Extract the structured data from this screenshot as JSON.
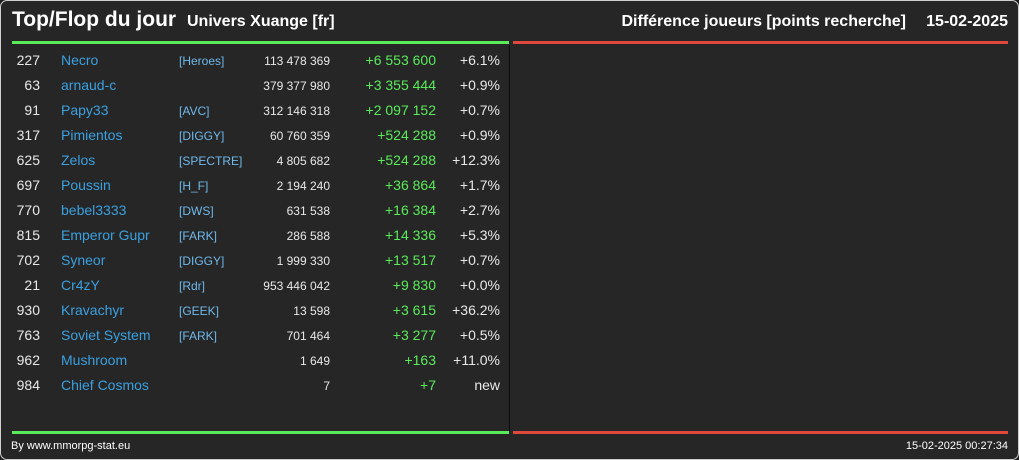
{
  "header": {
    "title": "Top/Flop du jour",
    "universe": "Univers Xuange [fr]",
    "metric": "Différence joueurs [points recherche]",
    "date": "15-02-2025"
  },
  "colors": {
    "top_line": "#5aeb5a",
    "flop_line": "#e0483e",
    "player_name": "#3aa0e0",
    "alliance_tag": "#6fb8ea",
    "positive_diff": "#5aeb5a"
  },
  "top_rows": [
    {
      "rank": "227",
      "name": "Necro",
      "alliance": "[Heroes]",
      "points": "113 478 369",
      "diff": "+6 553 600",
      "pct": "+6.1%"
    },
    {
      "rank": "63",
      "name": "arnaud-c",
      "alliance": "",
      "points": "379 377 980",
      "diff": "+3 355 444",
      "pct": "+0.9%"
    },
    {
      "rank": "91",
      "name": "Papy33",
      "alliance": "[AVC]",
      "points": "312 146 318",
      "diff": "+2 097 152",
      "pct": "+0.7%"
    },
    {
      "rank": "317",
      "name": "Pimientos",
      "alliance": "[DIGGY]",
      "points": "60 760 359",
      "diff": "+524 288",
      "pct": "+0.9%"
    },
    {
      "rank": "625",
      "name": "Zelos",
      "alliance": "[SPECTRE]",
      "points": "4 805 682",
      "diff": "+524 288",
      "pct": "+12.3%"
    },
    {
      "rank": "697",
      "name": "Poussin",
      "alliance": "[H_F]",
      "points": "2 194 240",
      "diff": "+36 864",
      "pct": "+1.7%"
    },
    {
      "rank": "770",
      "name": "bebel3333",
      "alliance": "[DWS]",
      "points": "631 538",
      "diff": "+16 384",
      "pct": "+2.7%"
    },
    {
      "rank": "815",
      "name": "Emperor Gupr",
      "alliance": "[FARK]",
      "points": "286 588",
      "diff": "+14 336",
      "pct": "+5.3%"
    },
    {
      "rank": "702",
      "name": "Syneor",
      "alliance": "[DIGGY]",
      "points": "1 999 330",
      "diff": "+13 517",
      "pct": "+0.7%"
    },
    {
      "rank": "21",
      "name": "Cr4zY",
      "alliance": "[Rdr]",
      "points": "953 446 042",
      "diff": "+9 830",
      "pct": "+0.0%"
    },
    {
      "rank": "930",
      "name": "Kravachyr",
      "alliance": "[GEEK]",
      "points": "13 598",
      "diff": "+3 615",
      "pct": "+36.2%"
    },
    {
      "rank": "763",
      "name": "Soviet System",
      "alliance": "[FARK]",
      "points": "701 464",
      "diff": "+3 277",
      "pct": "+0.5%"
    },
    {
      "rank": "962",
      "name": "Mushroom",
      "alliance": "",
      "points": "1 649",
      "diff": "+163",
      "pct": "+11.0%"
    },
    {
      "rank": "984",
      "name": "Chief Cosmos",
      "alliance": "",
      "points": "7",
      "diff": "+7",
      "pct": "new"
    }
  ],
  "footer": {
    "credit": "By www.mmorpg-stat.eu",
    "timestamp": "15-02-2025 00:27:34"
  }
}
